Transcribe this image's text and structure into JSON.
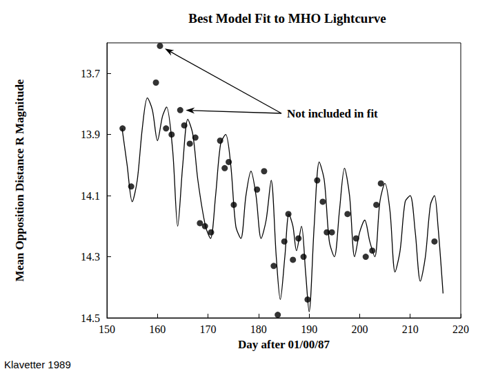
{
  "chart_data": {
    "type": "scatter",
    "title": "Best Model Fit to MHO Lightcurve",
    "x_label": "Day after 01/00/87",
    "y_label": "Mean Opposition Distance R Magnitude",
    "source": "Klavetter 1989",
    "annotation": "Not included in fit",
    "xlim": [
      150,
      220
    ],
    "xticks": [
      150,
      160,
      170,
      180,
      190,
      200,
      210,
      220
    ],
    "ylim": [
      14.5,
      13.6
    ],
    "yticks": [
      13.7,
      13.9,
      14.1,
      14.3,
      14.5
    ],
    "grid": false,
    "series": [
      {
        "type": "scatter",
        "color": "#000000",
        "marker": "circle",
        "x": [
          153.1,
          154.8,
          159.7,
          160.5,
          161.7,
          162.8,
          164.5,
          165.3,
          166.4,
          167.5,
          168.4,
          169.4,
          170.6,
          172.4,
          173.3,
          174.1,
          175.1,
          179.7,
          181.1,
          183.0,
          183.8,
          185.1,
          185.9,
          186.8,
          187.9,
          188.9,
          189.7,
          191.6,
          192.7,
          193.5,
          194.5,
          197.6,
          199.3,
          201.2,
          202.5,
          203.3,
          204.2,
          214.8
        ],
        "values": [
          13.88,
          14.07,
          13.73,
          13.61,
          13.88,
          13.9,
          13.82,
          13.87,
          13.93,
          13.91,
          14.19,
          14.2,
          14.22,
          13.92,
          14.01,
          13.99,
          14.13,
          14.08,
          14.02,
          14.33,
          14.49,
          14.25,
          14.16,
          14.31,
          14.24,
          14.3,
          14.44,
          14.05,
          14.12,
          14.22,
          14.22,
          14.16,
          14.24,
          14.3,
          14.28,
          14.13,
          14.06,
          14.25
        ],
        "included_in_fit": [
          true,
          true,
          true,
          false,
          true,
          true,
          false,
          true,
          true,
          true,
          true,
          true,
          true,
          true,
          true,
          true,
          true,
          true,
          true,
          true,
          true,
          true,
          true,
          true,
          true,
          true,
          true,
          true,
          true,
          true,
          true,
          true,
          true,
          true,
          true,
          true,
          true,
          true
        ]
      },
      {
        "type": "line",
        "color": "#000000",
        "line_style": "solid",
        "x": [
          153,
          154,
          155,
          156,
          157,
          158,
          159,
          160,
          161,
          161.8,
          163,
          164,
          165,
          166,
          167,
          168,
          169.5,
          170.5,
          171.5,
          172.5,
          173.5,
          174.5,
          175.5,
          176.5,
          177.5,
          178.5,
          179.5,
          180.5,
          181.5,
          182.5,
          183.5,
          184.3,
          185.2,
          186,
          186.8,
          187.5,
          188.5,
          189.3,
          190,
          191,
          192,
          193,
          194,
          195,
          196,
          197,
          198,
          199,
          200,
          201,
          202,
          203,
          204,
          205,
          206,
          207,
          208,
          209,
          210,
          211,
          212,
          213,
          214,
          214.8,
          215.5,
          216.5
        ],
        "values": [
          13.88,
          14.0,
          14.12,
          14.05,
          13.88,
          13.78,
          13.82,
          13.92,
          13.84,
          13.81,
          13.95,
          14.2,
          14.0,
          13.85,
          13.9,
          14.05,
          14.2,
          14.24,
          14.1,
          13.93,
          13.9,
          14.0,
          14.2,
          14.24,
          14.1,
          14.02,
          14.1,
          14.24,
          14.18,
          14.05,
          14.3,
          14.44,
          14.3,
          14.16,
          14.2,
          14.28,
          14.2,
          14.35,
          14.48,
          14.2,
          13.99,
          14.05,
          14.25,
          14.3,
          14.15,
          14.01,
          14.1,
          14.3,
          14.22,
          14.18,
          14.25,
          14.3,
          14.12,
          14.06,
          14.15,
          14.35,
          14.28,
          14.12,
          14.1,
          14.22,
          14.38,
          14.3,
          14.13,
          14.1,
          14.2,
          14.42
        ]
      }
    ]
  }
}
